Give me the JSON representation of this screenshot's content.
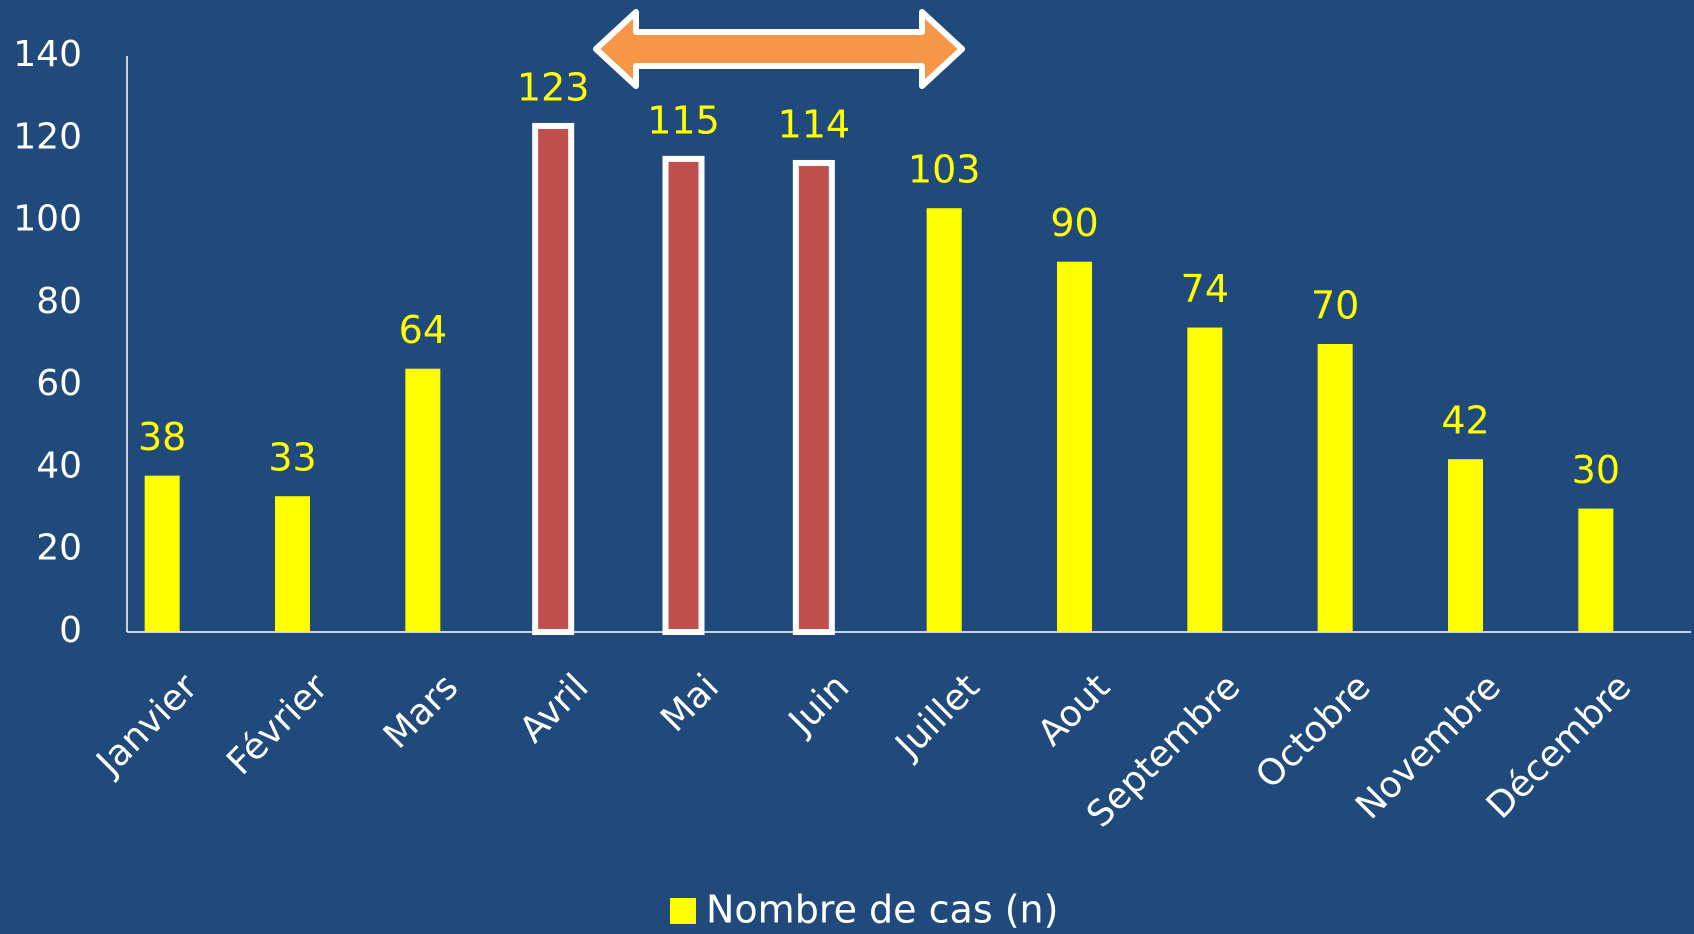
{
  "chart_data": {
    "type": "bar",
    "categories": [
      "Janvier",
      "Février",
      "Mars",
      "Avril",
      "Mai",
      "Juin",
      "Juillet",
      "Aout",
      "Septembre",
      "Octobre",
      "Novembre",
      "Décembre"
    ],
    "series": [
      {
        "name": "Nombre de cas (n)",
        "color": "#ffff00",
        "values": [
          38,
          33,
          64,
          123,
          115,
          114,
          103,
          90,
          74,
          70,
          42,
          30
        ],
        "colors": [
          "#ffff00",
          "#ffff00",
          "#ffff00",
          "#c0504d",
          "#c0504d",
          "#c0504d",
          "#ffff00",
          "#ffff00",
          "#ffff00",
          "#ffff00",
          "#ffff00",
          "#ffff00"
        ]
      }
    ],
    "ylim": [
      0,
      140
    ],
    "yticks": [
      0,
      20,
      40,
      60,
      80,
      100,
      120,
      140
    ],
    "grid": false,
    "legend": "bottom"
  }
}
